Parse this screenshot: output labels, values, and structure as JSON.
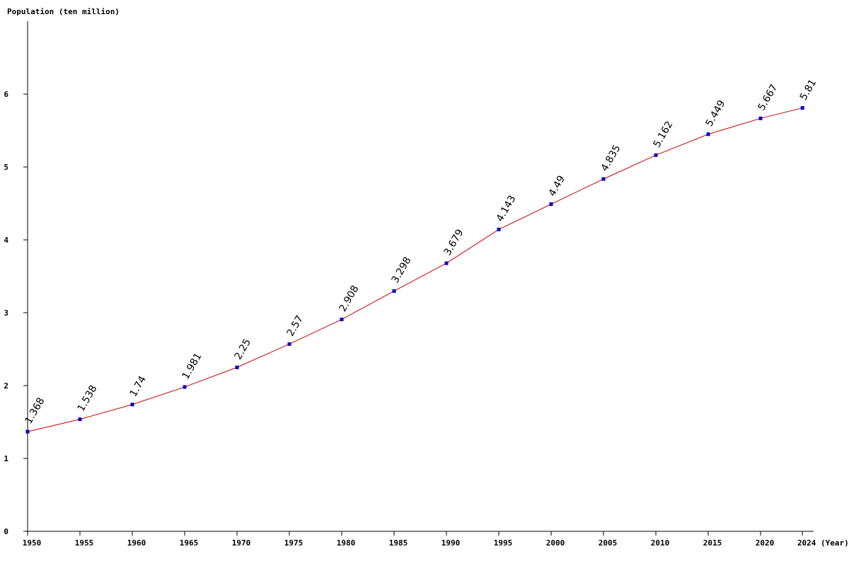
{
  "chart_data": {
    "type": "line",
    "ylabel": "Population (ten million)",
    "xlabel": "(Year)",
    "ylim": [
      0,
      7
    ],
    "y_ticks": [
      0,
      1,
      2,
      3,
      4,
      5,
      6
    ],
    "x_ticks": [
      1950,
      1955,
      1960,
      1965,
      1970,
      1975,
      1980,
      1985,
      1990,
      1995,
      2000,
      2005,
      2010,
      2015,
      2020,
      2024
    ],
    "grid": false,
    "line_color": "#cc0000",
    "marker_color": "#0000cc",
    "series": [
      {
        "x": [
          1950,
          1955,
          1960,
          1965,
          1970,
          1975,
          1980,
          1985,
          1990,
          1995,
          2000,
          2005,
          2010,
          2015,
          2020,
          2024
        ],
        "values": [
          1.368,
          1.538,
          1.74,
          1.981,
          2.25,
          2.57,
          2.908,
          3.298,
          3.679,
          4.143,
          4.49,
          4.835,
          5.162,
          5.449,
          5.667,
          5.81
        ],
        "labels": [
          "1.368",
          "1.538",
          "1.74",
          "1.981",
          "2.25",
          "2.57",
          "2.908",
          "3.298",
          "3.679",
          "4.143",
          "4.49",
          "4.835",
          "5.162",
          "5.449",
          "5.667",
          "5.81"
        ]
      }
    ]
  }
}
